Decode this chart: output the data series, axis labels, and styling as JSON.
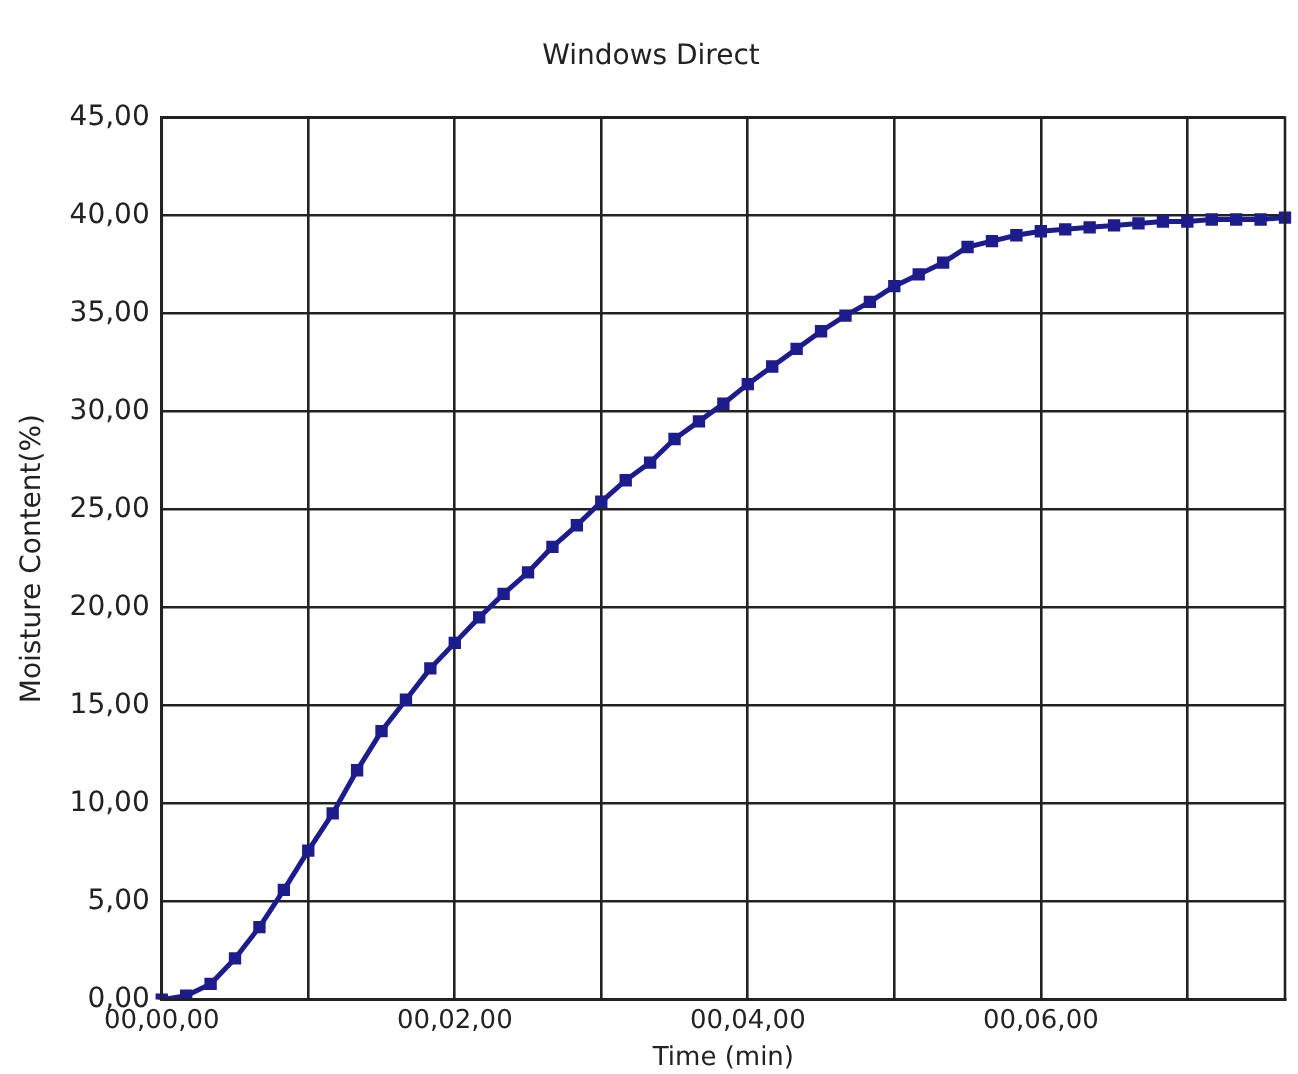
{
  "chart_data": {
    "type": "line",
    "title": "Windows Direct",
    "xlabel": "Time (min)",
    "ylabel": "Moisture Content(%)",
    "categories": [
      "00,00,00",
      null,
      null,
      null,
      null,
      null,
      null,
      null,
      null,
      null,
      null,
      null,
      "00,02,00",
      null,
      null,
      null,
      null,
      null,
      null,
      null,
      null,
      null,
      null,
      null,
      "00,04,00",
      null,
      null,
      null,
      null,
      null,
      null,
      null,
      null,
      null,
      null,
      null,
      "00,06,00",
      null,
      null,
      null,
      null,
      null,
      null,
      null,
      null,
      null,
      null
    ],
    "series": [
      {
        "color": "#1c1c8c",
        "values": [
          0,
          0.2,
          0.8,
          2.1,
          3.7,
          5.6,
          7.6,
          9.5,
          11.7,
          13.7,
          15.3,
          16.9,
          18.2,
          19.5,
          20.7,
          21.8,
          23.1,
          24.2,
          25.4,
          26.5,
          27.4,
          28.6,
          29.5,
          30.4,
          31.4,
          32.3,
          33.2,
          34.1,
          34.9,
          35.6,
          36.4,
          37.0,
          37.6,
          38.4,
          38.7,
          39.0,
          39.2,
          39.3,
          39.4,
          39.5,
          39.6,
          39.7,
          39.7,
          39.8,
          39.8,
          39.8,
          39.9
        ]
      }
    ],
    "ylim": [
      0,
      45
    ],
    "yticks": [
      {
        "value": 0,
        "label": "0,00"
      },
      {
        "value": 5,
        "label": "5,00"
      },
      {
        "value": 10,
        "label": "10,00"
      },
      {
        "value": 15,
        "label": "15,00"
      },
      {
        "value": 20,
        "label": "20,00"
      },
      {
        "value": 25,
        "label": "25,00"
      },
      {
        "value": 30,
        "label": "30,00"
      },
      {
        "value": 35,
        "label": "35,00"
      },
      {
        "value": 40,
        "label": "40,00"
      },
      {
        "value": 45,
        "label": "45,00"
      }
    ],
    "grid": true,
    "legend": false,
    "marker": "square",
    "line_style": "solid"
  }
}
